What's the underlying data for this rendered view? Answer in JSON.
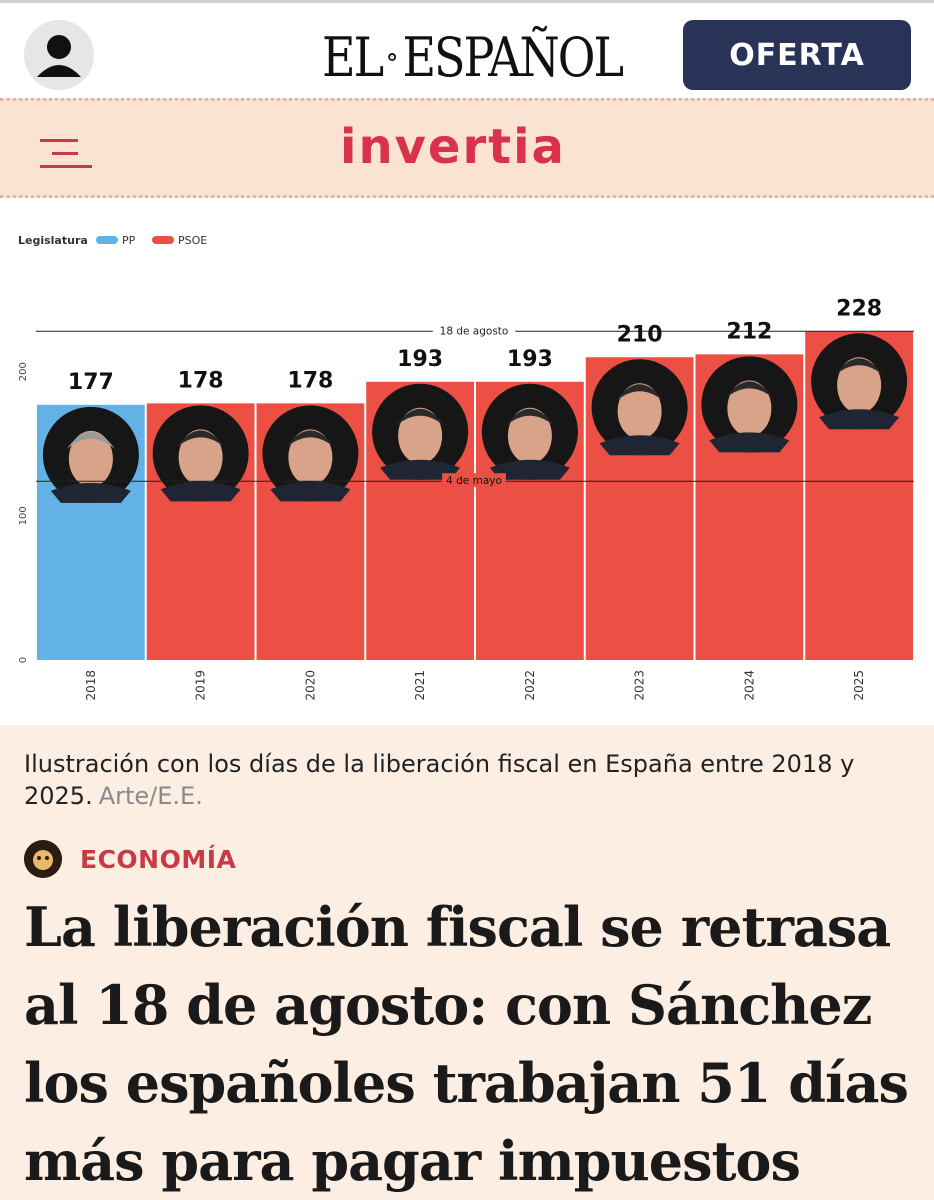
{
  "header": {
    "brand_left": "EL",
    "brand_right": "ESPAÑOL",
    "offer_label": "OFERTA"
  },
  "subheader": {
    "brand": "invertia"
  },
  "chart_data": {
    "type": "bar",
    "legend_title": "Legislatura",
    "legend": [
      {
        "name": "PP",
        "color": "#62b2e6"
      },
      {
        "name": "PSOE",
        "color": "#ec4f44"
      }
    ],
    "categories": [
      "2018",
      "2019",
      "2020",
      "2021",
      "2022",
      "2023",
      "2024",
      "2025"
    ],
    "values": [
      177,
      178,
      178,
      193,
      193,
      210,
      212,
      228
    ],
    "value_labels": [
      "177",
      "178",
      "178",
      "193",
      "193",
      "210",
      "212",
      "228"
    ],
    "party": [
      "PP",
      "PSOE",
      "PSOE",
      "PSOE",
      "PSOE",
      "PSOE",
      "PSOE",
      "PSOE"
    ],
    "ylim": [
      0,
      240
    ],
    "yticks": [
      0,
      100,
      200
    ],
    "ytick_labels": [
      "0",
      "100",
      "200"
    ],
    "reference_lines": [
      {
        "value": 228,
        "label": "18 de agosto"
      },
      {
        "value": 124,
        "label": "4 de mayo"
      }
    ],
    "grid": false
  },
  "caption": {
    "text": "Ilustración con los días de la liberación fiscal en España entre 2018 y 2025.",
    "credit": "Arte/E.E."
  },
  "section": {
    "label": "ECONOMÍA"
  },
  "headline": "La liberación fiscal se retrasa al 18 de agosto: con Sánchez los españoles trabajan 51 días más para pagar impuestos",
  "colors": {
    "offer_button": "#283357",
    "invertia_red": "#d8334a",
    "section_red": "#c83a44"
  }
}
